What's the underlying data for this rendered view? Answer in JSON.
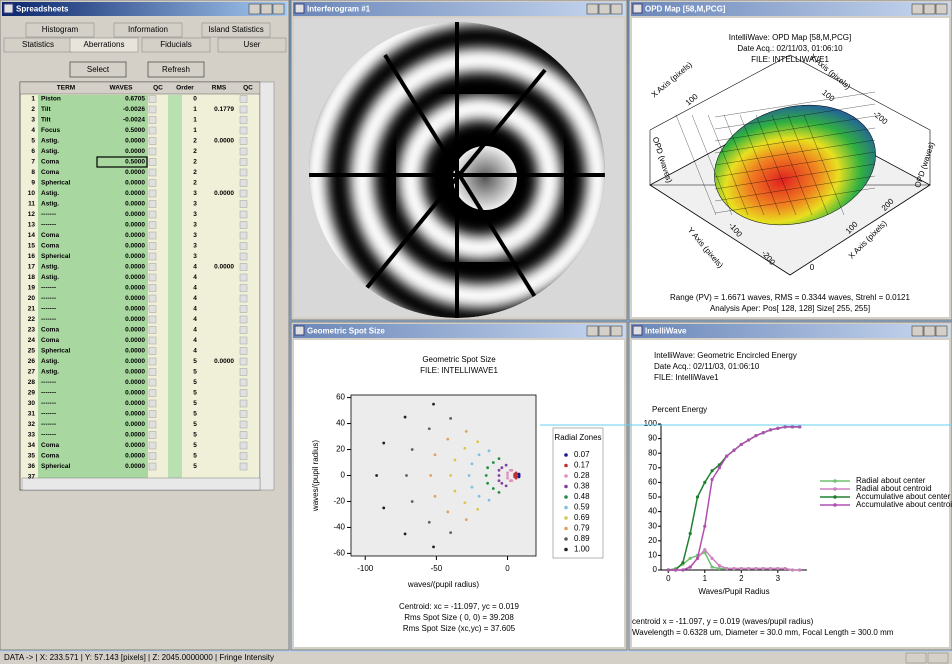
{
  "spreadsheet": {
    "title": "Spreadsheets",
    "tabs": [
      [
        "Histogram",
        "Information",
        "Island Statistics"
      ],
      [
        "Statistics",
        "Aberrations",
        "Fiducials",
        "User"
      ]
    ],
    "buttons": [
      "Select",
      "Refresh"
    ],
    "columns": [
      "TERM",
      "WAVES",
      "QC",
      "Order",
      "RMS",
      "QC"
    ],
    "rows": [
      {
        "n": 1,
        "term": "Piston",
        "waves": "0.6705",
        "order": 0
      },
      {
        "n": 2,
        "term": "Tilt",
        "waves": "-0.0026",
        "order": 1,
        "rms": "0.1779"
      },
      {
        "n": 3,
        "term": "Tilt",
        "waves": "-0.0024",
        "order": 1
      },
      {
        "n": 4,
        "term": "Focus",
        "waves": "0.5000",
        "order": 1
      },
      {
        "n": 5,
        "term": "Astig.",
        "waves": "0.0000",
        "order": 2,
        "rms": "0.0000"
      },
      {
        "n": 6,
        "term": "Astig.",
        "waves": "0.0000",
        "order": 2
      },
      {
        "n": 7,
        "term": "Coma",
        "waves": "0.5000",
        "order": 2
      },
      {
        "n": 8,
        "term": "Coma",
        "waves": "0.0000",
        "order": 2
      },
      {
        "n": 9,
        "term": "Spherical",
        "waves": "0.0000",
        "order": 2
      },
      {
        "n": 10,
        "term": "Astig.",
        "waves": "0.0000",
        "order": 3,
        "rms": "0.0000"
      },
      {
        "n": 11,
        "term": "Astig.",
        "waves": "0.0000",
        "order": 3
      },
      {
        "n": 12,
        "term": "-------",
        "waves": "0.0000",
        "order": 3
      },
      {
        "n": 13,
        "term": "-------",
        "waves": "0.0000",
        "order": 3
      },
      {
        "n": 14,
        "term": "Coma",
        "waves": "0.0000",
        "order": 3
      },
      {
        "n": 15,
        "term": "Coma",
        "waves": "0.0000",
        "order": 3
      },
      {
        "n": 16,
        "term": "Spherical",
        "waves": "0.0000",
        "order": 3
      },
      {
        "n": 17,
        "term": "Astig.",
        "waves": "0.0000",
        "order": 4,
        "rms": "0.0000"
      },
      {
        "n": 18,
        "term": "Astig.",
        "waves": "0.0000",
        "order": 4
      },
      {
        "n": 19,
        "term": "-------",
        "waves": "0.0000",
        "order": 4
      },
      {
        "n": 20,
        "term": "-------",
        "waves": "0.0000",
        "order": 4
      },
      {
        "n": 21,
        "term": "-------",
        "waves": "0.0000",
        "order": 4
      },
      {
        "n": 22,
        "term": "-------",
        "waves": "0.0000",
        "order": 4
      },
      {
        "n": 23,
        "term": "Coma",
        "waves": "0.0000",
        "order": 4
      },
      {
        "n": 24,
        "term": "Coma",
        "waves": "0.0000",
        "order": 4
      },
      {
        "n": 25,
        "term": "Spherical",
        "waves": "0.0000",
        "order": 4
      },
      {
        "n": 26,
        "term": "Astig.",
        "waves": "0.0000",
        "order": 5,
        "rms": "0.0000"
      },
      {
        "n": 27,
        "term": "Astig.",
        "waves": "0.0000",
        "order": 5
      },
      {
        "n": 28,
        "term": "-------",
        "waves": "0.0000",
        "order": 5
      },
      {
        "n": 29,
        "term": "-------",
        "waves": "0.0000",
        "order": 5
      },
      {
        "n": 30,
        "term": "-------",
        "waves": "0.0000",
        "order": 5
      },
      {
        "n": 31,
        "term": "-------",
        "waves": "0.0000",
        "order": 5
      },
      {
        "n": 32,
        "term": "-------",
        "waves": "0.0000",
        "order": 5
      },
      {
        "n": 33,
        "term": "-------",
        "waves": "0.0000",
        "order": 5
      },
      {
        "n": 34,
        "term": "Coma",
        "waves": "0.0000",
        "order": 5
      },
      {
        "n": 35,
        "term": "Coma",
        "waves": "0.0000",
        "order": 5
      },
      {
        "n": 36,
        "term": "Spherical",
        "waves": "0.0000",
        "order": 5
      },
      {
        "n": 37
      }
    ]
  },
  "interferogram": {
    "title": "Interferogram #1"
  },
  "opd_map": {
    "title": "OPD Map [58,M,PCG]",
    "lines": [
      "IntelliWave: OPD Map [58,M,PCG]",
      "Date Acq.: 02/11/03, 01:06:10",
      "FILE: INTELLIWAVE1"
    ],
    "axis_labels": [
      "X Axis (pixels)",
      "Y Axis (pixels)",
      "OPD (waves)"
    ],
    "tick_labels": [
      "100",
      "100",
      "-200",
      "-100",
      "-200",
      "200",
      "100",
      "0"
    ],
    "footer": [
      "Range (PV) =   1.6671 waves,  RMS =   0.3344 waves,  Strehl =   0.0121",
      "Analysis Aper: Pos[ 128, 128] Size[ 255, 255]"
    ]
  },
  "chart_data": [
    {
      "type": "scatter",
      "window_title": "Geometric Spot Size",
      "title": "Geometric Spot Size",
      "subtitle": "FILE: INTELLIWAVE1",
      "xlabel": "waves/(pupil radius)",
      "ylabel": "waves/(pupil radius)",
      "legend_title": "Radial Zones",
      "legend": "right",
      "xlim": [
        -110,
        20
      ],
      "xticks": [
        -100,
        -50,
        0
      ],
      "ylim": [
        -62,
        62
      ],
      "yticks": [
        -60,
        -40,
        -20,
        0,
        20,
        40,
        60
      ],
      "series": [
        {
          "name": "0.07",
          "color": "#1a1a8c",
          "x": [
            8,
            8,
            8,
            8,
            8,
            8,
            8
          ],
          "y": [
            0,
            0,
            0,
            1,
            -1,
            1,
            -1
          ]
        },
        {
          "name": "0.17",
          "color": "#c03030",
          "x": [
            5,
            5,
            5,
            6,
            6,
            6,
            6
          ],
          "y": [
            0,
            1,
            -1,
            1,
            -1,
            2,
            -2
          ]
        },
        {
          "name": "0.28",
          "color": "#e090c0",
          "x": [
            0,
            0,
            0,
            2,
            2,
            3,
            3
          ],
          "y": [
            0,
            2,
            -2,
            4,
            -4,
            4,
            -4
          ]
        },
        {
          "name": "0.38",
          "color": "#8040a0",
          "x": [
            -6,
            -6,
            -6,
            -4,
            -4,
            -1,
            -1
          ],
          "y": [
            0,
            4,
            -4,
            6,
            -6,
            8,
            -8
          ]
        },
        {
          "name": "0.48",
          "color": "#209040",
          "x": [
            -15,
            -14,
            -14,
            -10,
            -10,
            -6,
            -6
          ],
          "y": [
            0,
            6,
            -6,
            10,
            -10,
            13,
            -13
          ]
        },
        {
          "name": "0.59",
          "color": "#80c0e0",
          "x": [
            -27,
            -25,
            -25,
            -20,
            -20,
            -13,
            -13
          ],
          "y": [
            0,
            9,
            -9,
            16,
            -16,
            19,
            -19
          ]
        },
        {
          "name": "0.69",
          "color": "#d8c850",
          "x": [
            -40,
            -37,
            -37,
            -30,
            -30,
            -21,
            -21
          ],
          "y": [
            0,
            12,
            -12,
            21,
            -21,
            26,
            -26
          ]
        },
        {
          "name": "0.79",
          "color": "#e0a060",
          "x": [
            -54,
            -51,
            -51,
            -42,
            -42,
            -29,
            -29
          ],
          "y": [
            0,
            16,
            -16,
            28,
            -28,
            34,
            -34
          ]
        },
        {
          "name": "0.89",
          "color": "#606060",
          "x": [
            -71,
            -67,
            -67,
            -55,
            -55,
            -40,
            -40
          ],
          "y": [
            0,
            20,
            -20,
            36,
            -36,
            44,
            -44
          ]
        },
        {
          "name": "1.00",
          "color": "#202020",
          "x": [
            -92,
            -87,
            -87,
            -72,
            -72,
            -52,
            -52
          ],
          "y": [
            0,
            25,
            -25,
            45,
            -45,
            55,
            -55
          ]
        }
      ],
      "footer": [
        "Centroid: xc = -11.097, yc = 0.019",
        "Rms Spot Size ( 0, 0) = 39.208",
        "Rms Spot Size (xc,yc) = 37.605"
      ]
    },
    {
      "type": "line",
      "window_title": "IntelliWave",
      "header": [
        "IntelliWave: Geometric Encircled Energy",
        "Date Acq.: 02/11/03, 01:06:10",
        "FILE: IntelliWave1"
      ],
      "ylabel": "Percent Energy",
      "xlabel": "Waves/Pupil Radius",
      "legend": "right",
      "xlim": [
        -0.2,
        3.8
      ],
      "xticks": [
        0,
        1,
        2,
        3
      ],
      "ylim": [
        0,
        100
      ],
      "yticks": [
        0,
        10,
        20,
        30,
        40,
        50,
        60,
        70,
        80,
        90,
        100
      ],
      "x": [
        0,
        0.2,
        0.4,
        0.6,
        0.8,
        1.0,
        1.2,
        1.4,
        1.6,
        1.8,
        2.0,
        2.2,
        2.4,
        2.6,
        2.8,
        3.0,
        3.2,
        3.4,
        3.6
      ],
      "series": [
        {
          "name": "Radial about center",
          "color": "#70c070",
          "values": [
            0,
            1,
            4,
            8,
            10,
            12,
            2,
            1,
            1,
            1,
            1,
            1,
            1,
            1,
            1,
            1,
            1,
            0,
            0
          ]
        },
        {
          "name": "Radial about centroid",
          "color": "#d080c0",
          "values": [
            0,
            0,
            0,
            2,
            8,
            14,
            8,
            3,
            1,
            1,
            1,
            1,
            1,
            1,
            1,
            1,
            1,
            0,
            0
          ]
        },
        {
          "name": "Accumulative about center",
          "color": "#208030",
          "values": [
            0,
            0,
            5,
            25,
            50,
            60,
            68,
            72,
            78,
            82,
            86,
            89,
            92,
            94,
            96,
            97,
            98,
            98,
            98
          ]
        },
        {
          "name": "Accumulative about centroid",
          "color": "#b050b0",
          "values": [
            0,
            0,
            0,
            2,
            8,
            30,
            62,
            70,
            78,
            82,
            86,
            89,
            92,
            94,
            96,
            97,
            98,
            98,
            98
          ]
        }
      ],
      "footer": [
        "centroid x = -11.097, y = 0.019 (waves/pupil radius)",
        "Wavelength = 0.6328 um, Diameter = 30.0 mm, Focal Length = 300.0 mm"
      ]
    }
  ],
  "status_bar": "DATA -> |  X: 233.571  |  Y: 57.143 [pixels]  |  Z: 2045.0000000  |  Fringe Intensity"
}
